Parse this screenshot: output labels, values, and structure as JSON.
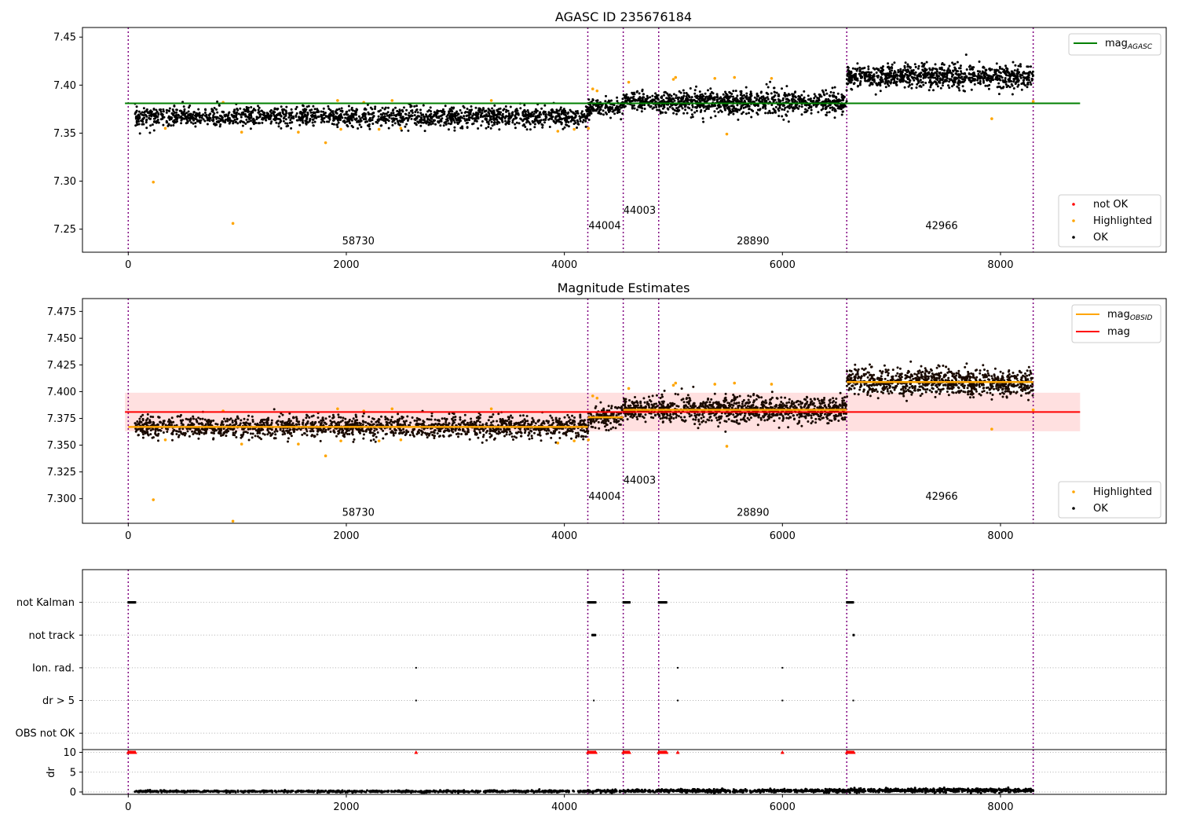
{
  "colors": {
    "ok": "#000000",
    "highlighted": "#ffa500",
    "not_ok": "#ff0000",
    "agasc_line": "#008000",
    "obsid_line": "#ffa500",
    "mag_line": "#ff0000",
    "mag_band": "#ffd6d6",
    "boundary": "#800080",
    "grid": "#b0b0b0"
  },
  "chart_data": [
    {
      "id": "top",
      "type": "scatter",
      "title": "AGASC ID 235676184",
      "xlim": [
        -420,
        9520
      ],
      "ylim": [
        7.226,
        7.46
      ],
      "xticks": [
        0,
        2000,
        4000,
        6000,
        8000
      ],
      "yticks": [
        7.25,
        7.3,
        7.35,
        7.4,
        7.45
      ],
      "ytick_decimals": 2,
      "grid": false,
      "boundaries": [
        0,
        4215,
        4540,
        4865,
        6590,
        8300
      ],
      "segment_labels": [
        {
          "text": "58730",
          "x": 2110,
          "y": 7.234
        },
        {
          "text": "44004",
          "x": 4370,
          "y": 7.25
        },
        {
          "text": "44003",
          "x": 4690,
          "y": 7.266
        },
        {
          "text": "28890",
          "x": 5730,
          "y": 7.234
        },
        {
          "text": "42966",
          "x": 7460,
          "y": 7.25
        }
      ],
      "reference_lines": [
        {
          "name": "mag",
          "subscript": "AGASC",
          "value": 7.381,
          "x": [
            -30,
            8730
          ],
          "color": "#008000"
        }
      ],
      "segments": [
        {
          "x": [
            60,
            4215
          ],
          "mean": 7.367,
          "spread": 0.005,
          "n": 1700
        },
        {
          "x": [
            4215,
            4540
          ],
          "mean": 7.376,
          "spread": 0.005,
          "n": 150
        },
        {
          "x": [
            4540,
            4865
          ],
          "mean": 7.383,
          "spread": 0.005,
          "n": 150
        },
        {
          "x": [
            4865,
            6590
          ],
          "mean": 7.382,
          "spread": 0.006,
          "n": 900
        },
        {
          "x": [
            6590,
            8300
          ],
          "mean": 7.409,
          "spread": 0.006,
          "n": 900
        }
      ],
      "highlighted_points": [
        [
          230,
          7.299
        ],
        [
          960,
          7.256
        ],
        [
          1810,
          7.34
        ],
        [
          1560,
          7.351
        ],
        [
          1040,
          7.351
        ],
        [
          1950,
          7.354
        ],
        [
          2300,
          7.354
        ],
        [
          2500,
          7.355
        ],
        [
          3940,
          7.352
        ],
        [
          4090,
          7.354
        ],
        [
          4220,
          7.355
        ],
        [
          1920,
          7.384
        ],
        [
          2160,
          7.382
        ],
        [
          2420,
          7.384
        ],
        [
          3330,
          7.384
        ],
        [
          870,
          7.382
        ],
        [
          4260,
          7.396
        ],
        [
          4300,
          7.394
        ],
        [
          4590,
          7.403
        ],
        [
          5000,
          7.406
        ],
        [
          5020,
          7.408
        ],
        [
          5380,
          7.407
        ],
        [
          5560,
          7.408
        ],
        [
          5900,
          7.407
        ],
        [
          5490,
          7.349
        ],
        [
          7920,
          7.365
        ],
        [
          8300,
          7.383
        ],
        [
          340,
          7.355
        ]
      ],
      "not_ok_points": [],
      "legend_lines": [
        {
          "label": "mag",
          "subscript": "AGASC",
          "color": "#008000"
        }
      ],
      "legend_markers": [
        {
          "label": "not OK",
          "color": "#ff0000"
        },
        {
          "label": "Highlighted",
          "color": "#ffa500"
        },
        {
          "label": "OK",
          "color": "#000000"
        }
      ]
    },
    {
      "id": "middle",
      "type": "scatter",
      "title": "Magnitude Estimates",
      "xlim": [
        -420,
        9520
      ],
      "ylim": [
        7.277,
        7.487
      ],
      "xticks": [
        0,
        2000,
        4000,
        6000,
        8000
      ],
      "yticks": [
        7.3,
        7.325,
        7.35,
        7.375,
        7.4,
        7.425,
        7.45,
        7.475
      ],
      "ytick_decimals": 3,
      "grid": false,
      "boundaries": [
        0,
        4215,
        4540,
        4865,
        6590,
        8300
      ],
      "segment_labels": [
        {
          "text": "58730",
          "x": 2110,
          "y": 7.284
        },
        {
          "text": "44004",
          "x": 4370,
          "y": 7.299
        },
        {
          "text": "44003",
          "x": 4690,
          "y": 7.314
        },
        {
          "text": "28890",
          "x": 5730,
          "y": 7.284
        },
        {
          "text": "42966",
          "x": 7460,
          "y": 7.299
        }
      ],
      "band": {
        "x": [
          -30,
          8730
        ],
        "y": [
          7.363,
          7.399
        ]
      },
      "reference_lines": [
        {
          "name": "mag",
          "value": 7.381,
          "x": [
            -30,
            8730
          ],
          "color": "#ff0000"
        }
      ],
      "step_lines": [
        {
          "x": [
            0,
            4215
          ],
          "value": 7.367
        },
        {
          "x": [
            4215,
            4540
          ],
          "value": 7.376
        },
        {
          "x": [
            4540,
            4865
          ],
          "value": 7.383
        },
        {
          "x": [
            4865,
            6590
          ],
          "value": 7.383
        },
        {
          "x": [
            6590,
            8300
          ],
          "value": 7.409
        }
      ],
      "segments": [
        {
          "x": [
            60,
            4215
          ],
          "mean": 7.367,
          "spread": 0.005,
          "n": 1700
        },
        {
          "x": [
            4215,
            4540
          ],
          "mean": 7.376,
          "spread": 0.005,
          "n": 150
        },
        {
          "x": [
            4540,
            4865
          ],
          "mean": 7.384,
          "spread": 0.005,
          "n": 150
        },
        {
          "x": [
            4865,
            6590
          ],
          "mean": 7.383,
          "spread": 0.006,
          "n": 900
        },
        {
          "x": [
            6590,
            8300
          ],
          "mean": 7.409,
          "spread": 0.006,
          "n": 900
        }
      ],
      "highlighted_points": [
        [
          230,
          7.299
        ],
        [
          1810,
          7.34
        ],
        [
          1560,
          7.351
        ],
        [
          1040,
          7.351
        ],
        [
          1950,
          7.354
        ],
        [
          2300,
          7.354
        ],
        [
          2500,
          7.355
        ],
        [
          3940,
          7.352
        ],
        [
          4090,
          7.354
        ],
        [
          4220,
          7.355
        ],
        [
          1920,
          7.384
        ],
        [
          2160,
          7.382
        ],
        [
          2420,
          7.384
        ],
        [
          3330,
          7.384
        ],
        [
          870,
          7.382
        ],
        [
          4260,
          7.396
        ],
        [
          4300,
          7.394
        ],
        [
          4590,
          7.403
        ],
        [
          5000,
          7.406
        ],
        [
          5020,
          7.408
        ],
        [
          5380,
          7.407
        ],
        [
          5560,
          7.408
        ],
        [
          5900,
          7.407
        ],
        [
          5490,
          7.349
        ],
        [
          7920,
          7.365
        ],
        [
          8300,
          7.383
        ],
        [
          340,
          7.355
        ],
        [
          960,
          7.279
        ]
      ],
      "legend_lines": [
        {
          "label": "mag",
          "subscript": "OBSID",
          "color": "#ffa500"
        },
        {
          "label": "mag",
          "color": "#ff0000"
        }
      ],
      "legend_markers": [
        {
          "label": "Highlighted",
          "color": "#ffa500"
        },
        {
          "label": "OK",
          "color": "#000000"
        }
      ]
    },
    {
      "id": "flags",
      "type": "scatter",
      "title": "",
      "xlim": [
        -420,
        9520
      ],
      "ylim": [
        -0.5,
        5.0
      ],
      "xticks": [],
      "category_labels": [
        "not Kalman",
        "not track",
        "Ion. rad.",
        "dr > 5",
        "OBS not OK"
      ],
      "category_values": [
        4,
        3,
        2,
        1,
        0
      ],
      "grid": true,
      "boundaries": [
        0,
        4215,
        4540,
        4865,
        6590,
        8300
      ],
      "flag_runs": [
        {
          "category": 4,
          "x": [
            0,
            70
          ]
        },
        {
          "category": 4,
          "x": [
            4215,
            4290
          ]
        },
        {
          "category": 4,
          "x": [
            4540,
            4600
          ]
        },
        {
          "category": 4,
          "x": [
            4865,
            4940
          ]
        },
        {
          "category": 4,
          "x": [
            6590,
            6650
          ]
        },
        {
          "category": 3,
          "x": [
            4255,
            4285
          ]
        },
        {
          "category": 3,
          "x": [
            6650,
            6660
          ]
        }
      ],
      "flag_points": [
        {
          "category": 2,
          "x": 2640
        },
        {
          "category": 2,
          "x": 5040
        },
        {
          "category": 2,
          "x": 6000
        },
        {
          "category": 1,
          "x": 2640
        },
        {
          "category": 1,
          "x": 4270
        },
        {
          "category": 1,
          "x": 5040
        },
        {
          "category": 1,
          "x": 6000
        },
        {
          "category": 1,
          "x": 6650
        }
      ]
    },
    {
      "id": "dr",
      "type": "scatter",
      "ylabel": "dr",
      "xlim": [
        -420,
        9520
      ],
      "ylim": [
        -0.6,
        10.7
      ],
      "xticks": [
        0,
        2000,
        4000,
        6000,
        8000
      ],
      "yticks": [
        0,
        5,
        10
      ],
      "grid": true,
      "boundaries": [
        0,
        4215,
        4540,
        4865,
        6590,
        8300
      ],
      "segments": [
        {
          "x": [
            60,
            4215
          ],
          "mean": 0.15,
          "spread": 0.12,
          "n": 900
        },
        {
          "x": [
            4215,
            4540
          ],
          "mean": 0.2,
          "spread": 0.15,
          "n": 80
        },
        {
          "x": [
            4540,
            4865
          ],
          "mean": 0.3,
          "spread": 0.2,
          "n": 80
        },
        {
          "x": [
            4865,
            6590
          ],
          "mean": 0.3,
          "spread": 0.2,
          "n": 500
        },
        {
          "x": [
            6590,
            8300
          ],
          "mean": 0.4,
          "spread": 0.25,
          "n": 500
        }
      ],
      "clipped_runs": [
        {
          "x": [
            0,
            70
          ]
        },
        {
          "x": [
            4215,
            4290
          ]
        },
        {
          "x": [
            4540,
            4600
          ]
        },
        {
          "x": [
            4865,
            4940
          ]
        },
        {
          "x": [
            6590,
            6660
          ]
        }
      ],
      "clipped_points": [
        2640,
        5040,
        6000
      ],
      "clip_value": 10
    }
  ]
}
